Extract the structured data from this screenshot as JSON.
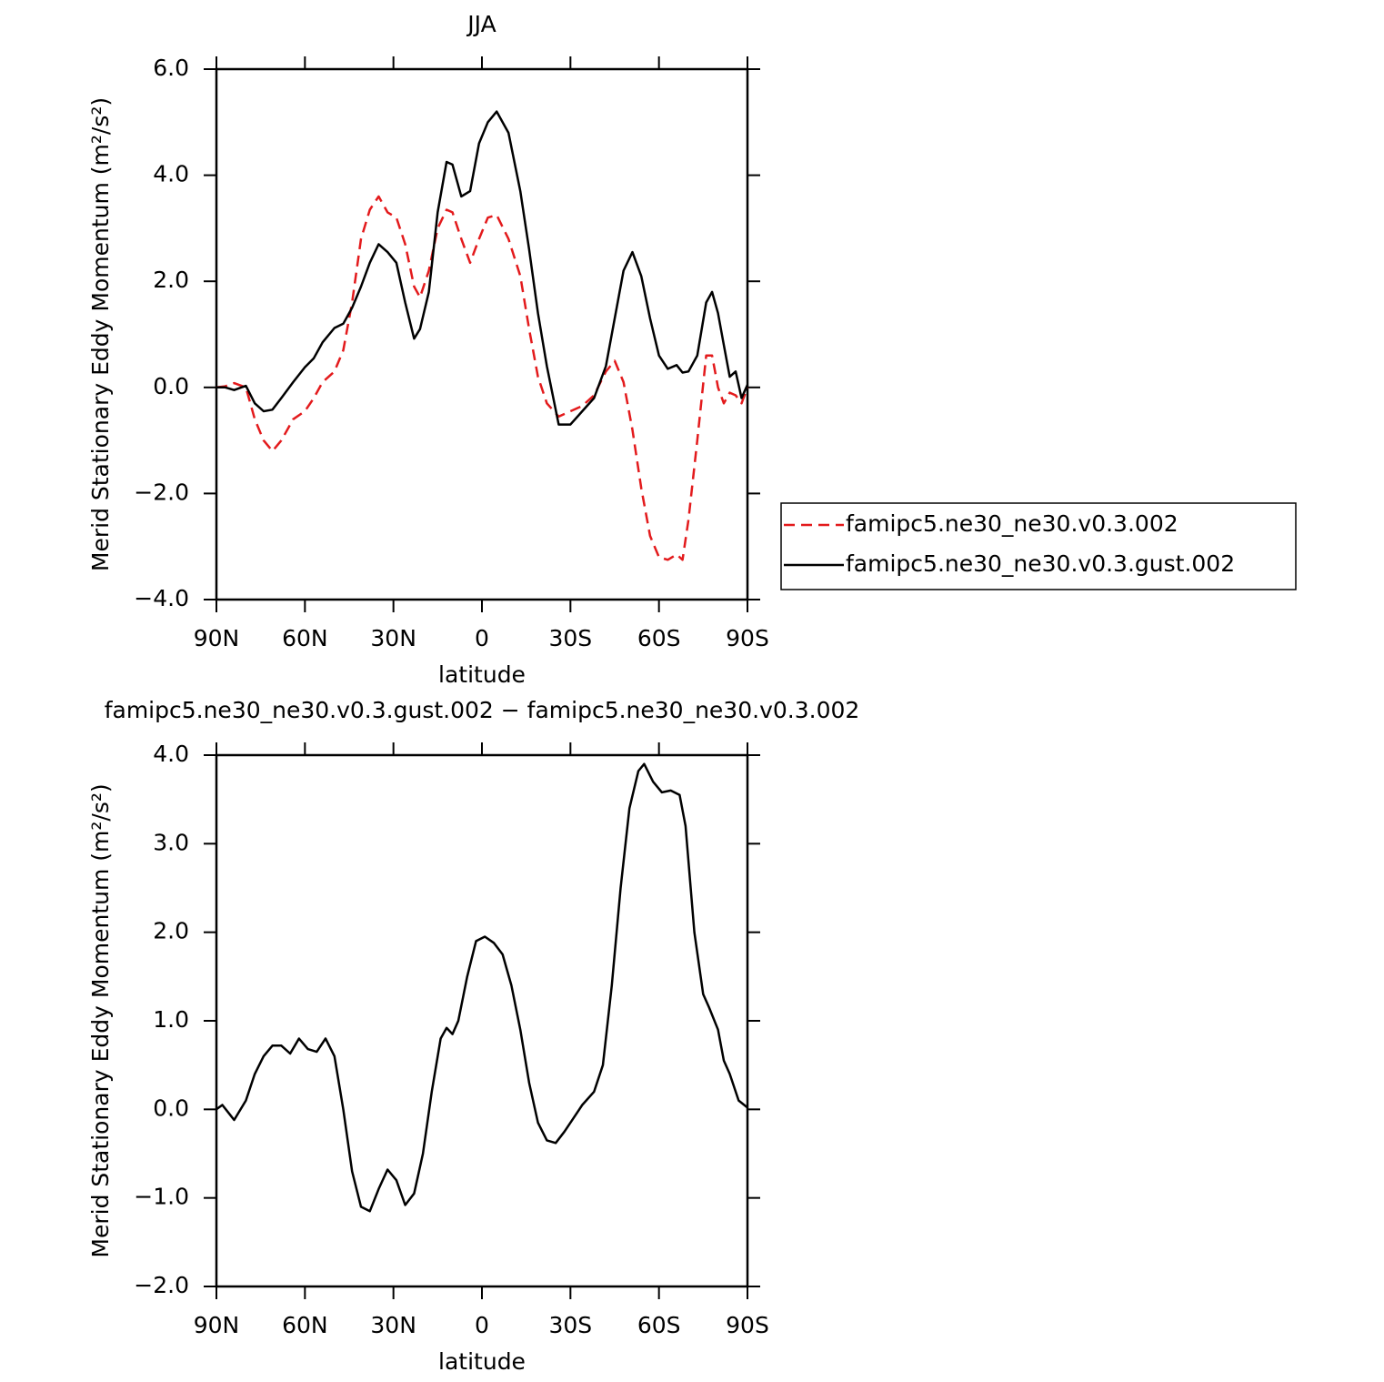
{
  "chart_data": [
    {
      "type": "line",
      "title": "JJA",
      "xlabel": "latitude",
      "ylabel": "Merid Stationary Eddy Momentum (m²/s²)",
      "x": [
        90,
        87,
        84,
        80,
        77,
        74,
        71,
        68,
        64,
        60,
        57,
        54,
        50,
        47,
        44,
        41,
        38,
        35,
        32,
        29,
        26,
        23,
        21,
        18,
        15,
        12,
        10,
        7,
        4,
        1,
        -2,
        -5,
        -9,
        -13,
        -16,
        -19,
        -22,
        -26,
        -30,
        -34,
        -38,
        -42,
        -45,
        -48,
        -51,
        -54,
        -57,
        -60,
        -63,
        -66,
        -68,
        -70,
        -73,
        -76,
        -78,
        -80,
        -82,
        -84,
        -86,
        -88,
        -90
      ],
      "series": [
        {
          "name": "famipc5.ne30_ne30.v0.3.002",
          "color": "#e31a1c",
          "line_style": "dashed",
          "values": [
            0,
            0.02,
            0.08,
            0,
            -0.6,
            -1.0,
            -1.2,
            -1.0,
            -0.6,
            -0.45,
            -0.2,
            0.1,
            0.3,
            0.7,
            1.6,
            2.8,
            3.35,
            3.6,
            3.3,
            3.2,
            2.7,
            1.9,
            1.7,
            2.2,
            3.0,
            3.35,
            3.3,
            2.8,
            2.35,
            2.8,
            3.2,
            3.25,
            2.8,
            2.1,
            1.1,
            0.2,
            -0.3,
            -0.55,
            -0.45,
            -0.35,
            -0.15,
            0.3,
            0.5,
            0.1,
            -0.8,
            -1.9,
            -2.8,
            -3.2,
            -3.25,
            -3.15,
            -3.25,
            -2.5,
            -1.0,
            0.6,
            0.6,
            0,
            -0.3,
            -0.1,
            -0.15,
            -0.3,
            0
          ]
        },
        {
          "name": "famipc5.ne30_ne30.v0.3.gust.002",
          "color": "#000000",
          "line_style": "solid",
          "values": [
            0,
            0,
            -0.05,
            0.03,
            -0.3,
            -0.45,
            -0.42,
            -0.2,
            0.1,
            0.38,
            0.55,
            0.85,
            1.12,
            1.2,
            1.5,
            1.9,
            2.35,
            2.7,
            2.55,
            2.35,
            1.6,
            0.92,
            1.1,
            1.8,
            3.3,
            4.25,
            4.2,
            3.6,
            3.7,
            4.6,
            5.0,
            5.2,
            4.8,
            3.7,
            2.6,
            1.4,
            0.4,
            -0.7,
            -0.7,
            -0.45,
            -0.2,
            0.4,
            1.3,
            2.2,
            2.55,
            2.1,
            1.3,
            0.6,
            0.35,
            0.42,
            0.28,
            0.3,
            0.6,
            1.6,
            1.8,
            1.4,
            0.8,
            0.2,
            0.3,
            -0.2,
            0.05
          ]
        }
      ],
      "xlim": [
        90,
        -90
      ],
      "xticks": [
        {
          "value": 90,
          "label": "90N"
        },
        {
          "value": 60,
          "label": "60N"
        },
        {
          "value": 30,
          "label": "30N"
        },
        0,
        {
          "value": -30,
          "label": "30S"
        },
        {
          "value": -60,
          "label": "60S"
        },
        {
          "value": -90,
          "label": "90S"
        }
      ],
      "ylim": [
        -4,
        6
      ],
      "yticks": [
        {
          "value": -4,
          "label": "−4.0"
        },
        {
          "value": -2,
          "label": "−2.0"
        },
        {
          "value": 0,
          "label": "0.0"
        },
        {
          "value": 2,
          "label": "2.0"
        },
        {
          "value": 4,
          "label": "4.0"
        },
        {
          "value": 6,
          "label": "6.0"
        }
      ]
    },
    {
      "type": "line",
      "title": "famipc5.ne30_ne30.v0.3.gust.002 − famipc5.ne30_ne30.v0.3.002",
      "xlabel": "latitude",
      "ylabel": "Merid Stationary Eddy Momentum (m²/s²)",
      "x": [
        90,
        88,
        84,
        80,
        77,
        74,
        71,
        68,
        65,
        62,
        59,
        56,
        53,
        50,
        47,
        44,
        41,
        38,
        35,
        32,
        29,
        26,
        23,
        20,
        17,
        14,
        12,
        10,
        8,
        5,
        2,
        -1,
        -4,
        -7,
        -10,
        -13,
        -16,
        -19,
        -22,
        -25,
        -28,
        -31,
        -34,
        -38,
        -41,
        -44,
        -47,
        -50,
        -53,
        -55,
        -58,
        -61,
        -64,
        -67,
        -69,
        -72,
        -75,
        -77,
        -80,
        -82,
        -84,
        -87,
        -90
      ],
      "values": [
        0,
        0.05,
        -0.12,
        0.1,
        0.4,
        0.6,
        0.72,
        0.72,
        0.63,
        0.8,
        0.68,
        0.65,
        0.8,
        0.6,
        0,
        -0.7,
        -1.1,
        -1.15,
        -0.9,
        -0.68,
        -0.8,
        -1.08,
        -0.95,
        -0.5,
        0.2,
        0.8,
        0.92,
        0.85,
        1.0,
        1.5,
        1.9,
        1.95,
        1.88,
        1.75,
        1.4,
        0.9,
        0.3,
        -0.15,
        -0.35,
        -0.38,
        -0.25,
        -0.1,
        0.05,
        0.2,
        0.5,
        1.4,
        2.5,
        3.4,
        3.82,
        3.9,
        3.7,
        3.58,
        3.6,
        3.55,
        3.2,
        2.0,
        1.3,
        1.15,
        0.9,
        0.55,
        0.4,
        0.1,
        0.02
      ],
      "color": "#000000",
      "xlim": [
        90,
        -90
      ],
      "xticks": [
        {
          "value": 90,
          "label": "90N"
        },
        {
          "value": 60,
          "label": "60N"
        },
        {
          "value": 30,
          "label": "30N"
        },
        0,
        {
          "value": -30,
          "label": "30S"
        },
        {
          "value": -60,
          "label": "60S"
        },
        {
          "value": -90,
          "label": "90S"
        }
      ],
      "ylim": [
        -2,
        4
      ],
      "yticks": [
        {
          "value": -2,
          "label": "−2.0"
        },
        {
          "value": -1,
          "label": "−1.0"
        },
        {
          "value": 0,
          "label": "0.0"
        },
        {
          "value": 1,
          "label": "1.0"
        },
        {
          "value": 2,
          "label": "2.0"
        },
        {
          "value": 3,
          "label": "3.0"
        },
        {
          "value": 4,
          "label": "4.0"
        }
      ]
    }
  ]
}
